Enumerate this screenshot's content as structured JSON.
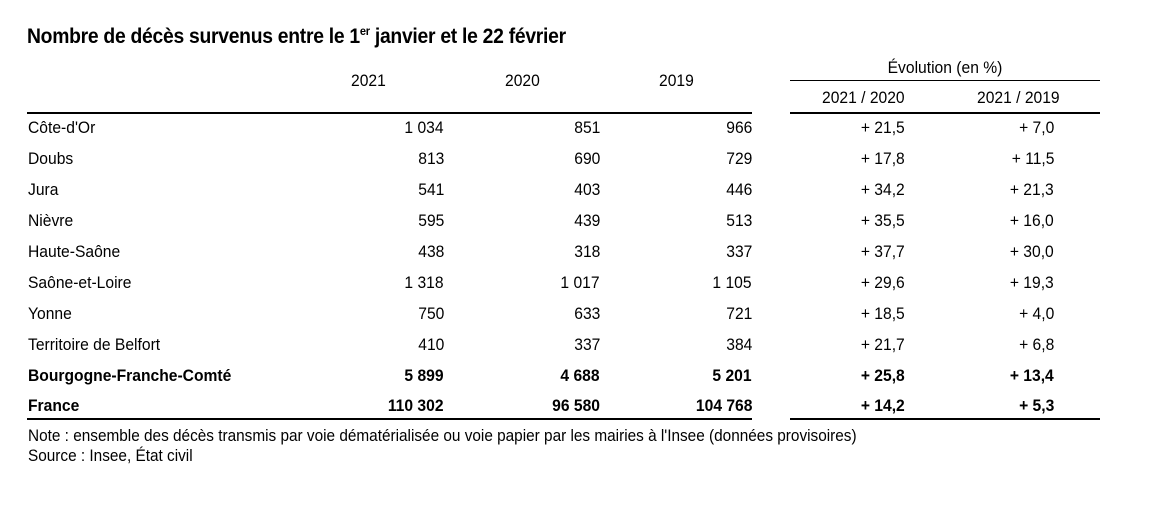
{
  "title": {
    "main": "Nombre de décès survenus entre le 1",
    "sup": "er",
    "rest": " janvier et le 22 février"
  },
  "headers": {
    "y2021": "2021",
    "y2020": "2020",
    "y2019": "2019",
    "evolution": "Évolution (en %)",
    "ev_2021_2020": "2021 / 2020",
    "ev_2021_2019": "2021 / 2019"
  },
  "rows": [
    {
      "name": "Côte-d'Or",
      "v2021": "1 034",
      "v2020": "851",
      "v2019": "966",
      "e1": "+ 21,5",
      "e2": "+ 7,0"
    },
    {
      "name": "Doubs",
      "v2021": "813",
      "v2020": "690",
      "v2019": "729",
      "e1": "+ 17,8",
      "e2": "+ 11,5"
    },
    {
      "name": "Jura",
      "v2021": "541",
      "v2020": "403",
      "v2019": "446",
      "e1": "+ 34,2",
      "e2": "+ 21,3"
    },
    {
      "name": "Nièvre",
      "v2021": "595",
      "v2020": "439",
      "v2019": "513",
      "e1": "+ 35,5",
      "e2": "+ 16,0"
    },
    {
      "name": "Haute-Saône",
      "v2021": "438",
      "v2020": "318",
      "v2019": "337",
      "e1": "+ 37,7",
      "e2": "+ 30,0"
    },
    {
      "name": "Saône-et-Loire",
      "v2021": "1 318",
      "v2020": "1 017",
      "v2019": "1 105",
      "e1": "+ 29,6",
      "e2": "+ 19,3"
    },
    {
      "name": "Yonne",
      "v2021": "750",
      "v2020": "633",
      "v2019": "721",
      "e1": "+ 18,5",
      "e2": "+ 4,0"
    },
    {
      "name": "Territoire de Belfort",
      "v2021": "410",
      "v2020": "337",
      "v2019": "384",
      "e1": "+ 21,7",
      "e2": "+ 6,8"
    },
    {
      "name": "Bourgogne-Franche-Comté",
      "v2021": "5 899",
      "v2020": "4 688",
      "v2019": "5 201",
      "e1": "+ 25,8",
      "e2": "+ 13,4"
    },
    {
      "name": "France",
      "v2021": "110 302",
      "v2020": "96 580",
      "v2019": "104 768",
      "e1": "+ 14,2",
      "e2": "+ 5,3"
    }
  ],
  "note": "Note : ensemble des décès transmis par voie dématérialisée ou voie papier par les mairies à l'Insee (données provisoires)",
  "source": "Source : Insee, État civil"
}
